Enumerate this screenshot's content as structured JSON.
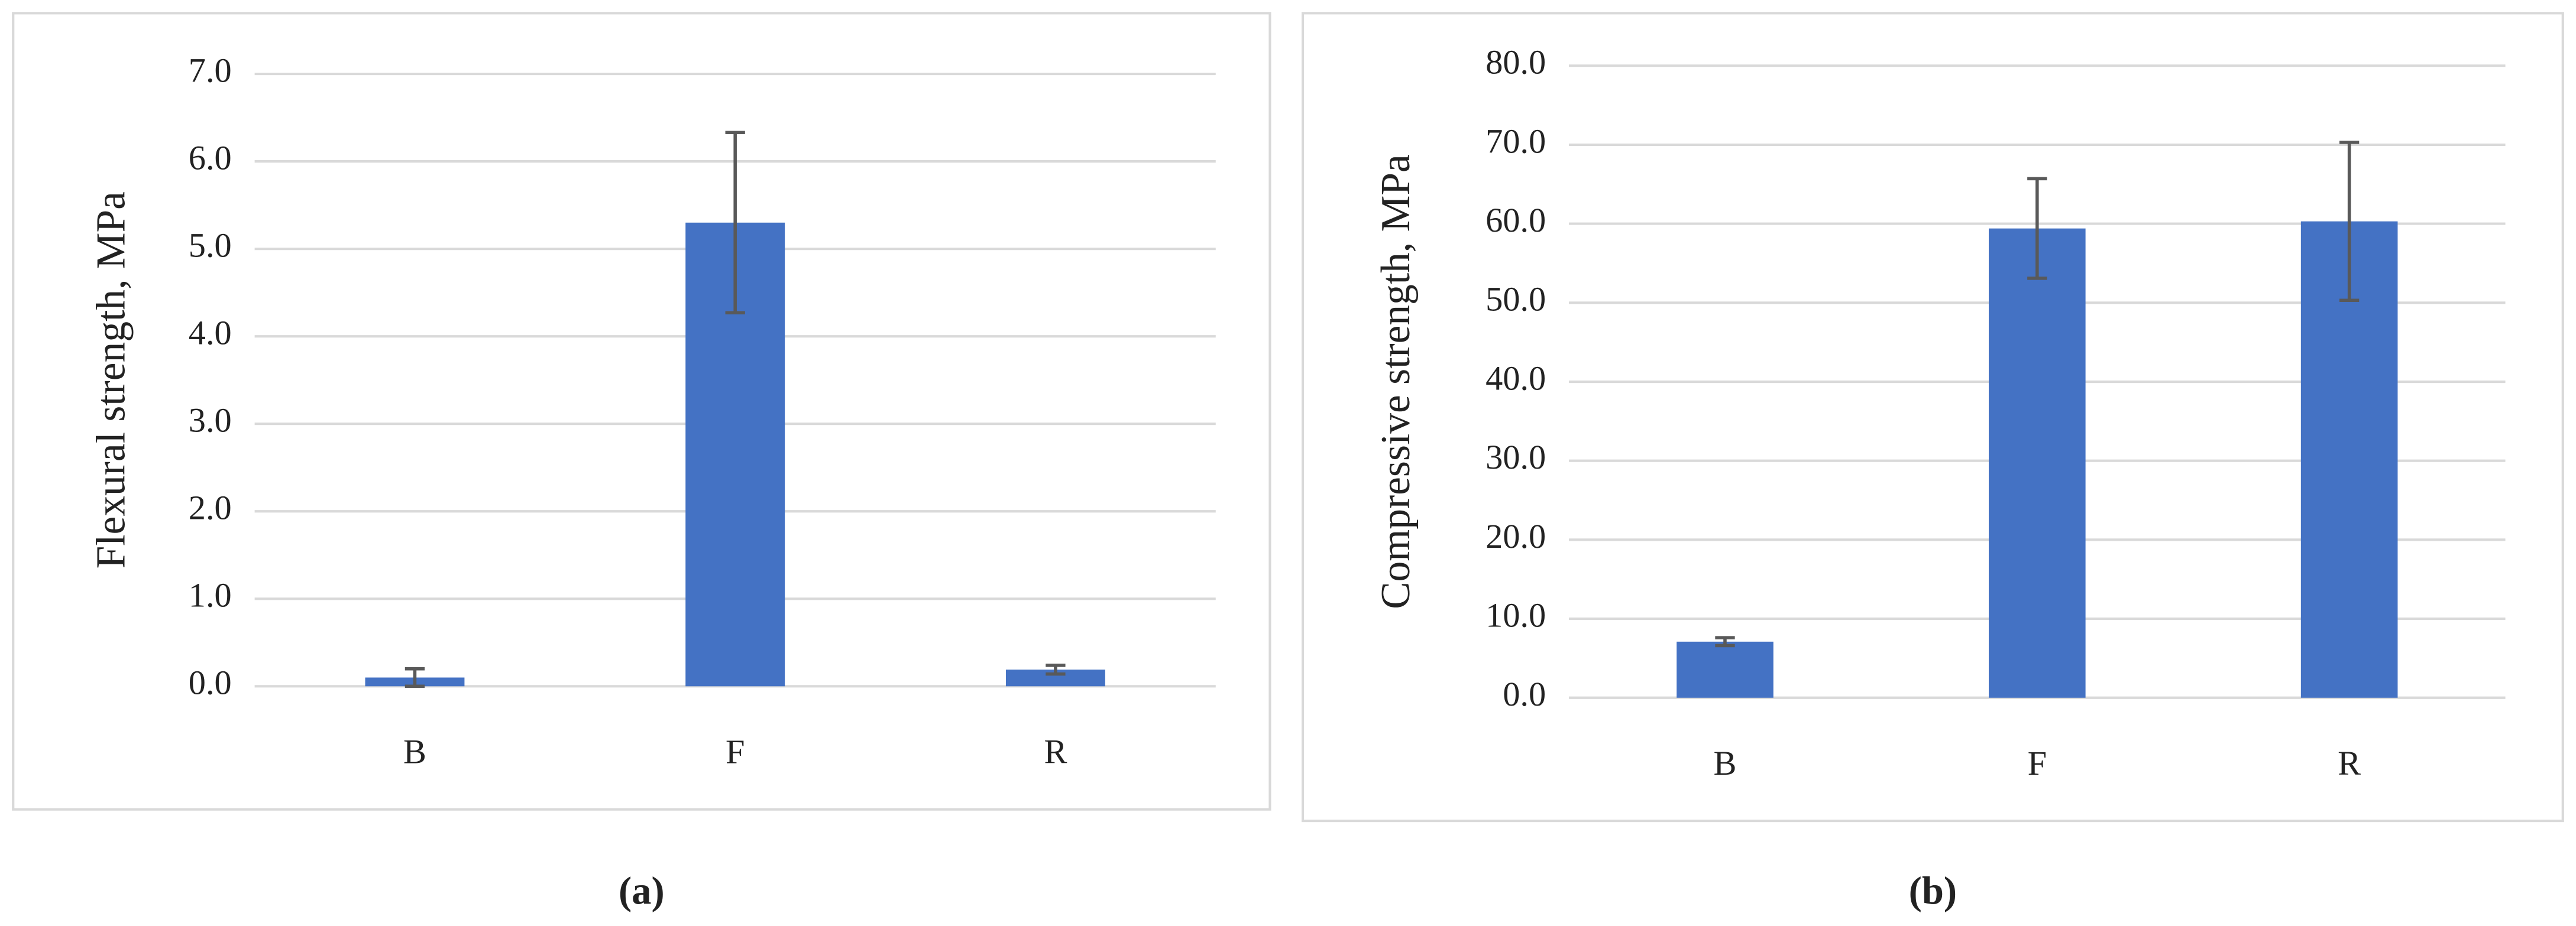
{
  "chart_data": [
    {
      "type": "bar",
      "caption": "(a)",
      "ylabel": "Flexural strength, MPa",
      "categories": [
        "B",
        "F",
        "R"
      ],
      "values": [
        0.1,
        5.3,
        0.19
      ],
      "errors": [
        0.1,
        1.03,
        0.05
      ],
      "color": "#4472c4",
      "error_color": "#595959",
      "ylim": [
        0,
        7
      ],
      "yticks": [
        {
          "value": 0,
          "label": "0.0"
        },
        {
          "value": 1,
          "label": "1.0"
        },
        {
          "value": 2,
          "label": "2.0"
        },
        {
          "value": 3,
          "label": "3.0"
        },
        {
          "value": 4,
          "label": "4.0"
        },
        {
          "value": 5,
          "label": "5.0"
        },
        {
          "value": 6,
          "label": "6.0"
        },
        {
          "value": 7,
          "label": "7.0"
        }
      ],
      "grid": true
    },
    {
      "type": "bar",
      "caption": "(b)",
      "ylabel": "Compressive strength, MPa",
      "categories": [
        "B",
        "F",
        "R"
      ],
      "values": [
        7.1,
        59.4,
        60.3
      ],
      "errors": [
        0.5,
        6.3,
        10.0
      ],
      "color": "#4472c4",
      "error_color": "#595959",
      "ylim": [
        0,
        80
      ],
      "yticks": [
        {
          "value": 0,
          "label": "0.0"
        },
        {
          "value": 10,
          "label": "10.0"
        },
        {
          "value": 20,
          "label": "20.0"
        },
        {
          "value": 30,
          "label": "30.0"
        },
        {
          "value": 40,
          "label": "40.0"
        },
        {
          "value": 50,
          "label": "50.0"
        },
        {
          "value": 60,
          "label": "60.0"
        },
        {
          "value": 70,
          "label": "70.0"
        },
        {
          "value": 80,
          "label": "80.0"
        }
      ],
      "grid": true
    }
  ]
}
